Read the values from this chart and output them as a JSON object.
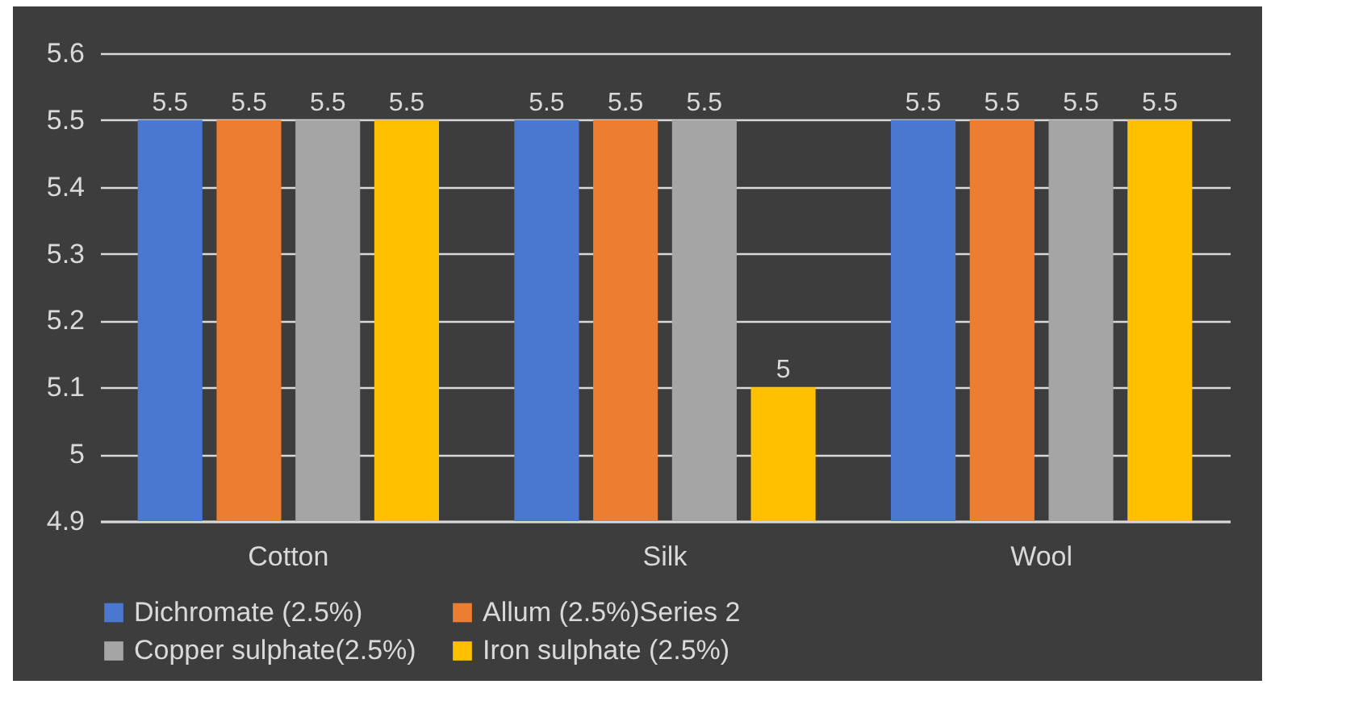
{
  "chart_data": {
    "type": "bar",
    "categories": [
      "Cotton",
      "Silk",
      "Wool"
    ],
    "series": [
      {
        "name": "Dichromate (2.5%)",
        "color": "#4a78d0",
        "values": [
          5.5,
          5.5,
          5.5
        ],
        "value_labels": [
          "5.5",
          "5.5",
          "5.5"
        ]
      },
      {
        "name": "Allum (2.5%)Series 2",
        "color": "#ed7d31",
        "values": [
          5.5,
          5.5,
          5.5
        ],
        "value_labels": [
          "5.5",
          "5.5",
          "5.5"
        ]
      },
      {
        "name": "Copper sulphate(2.5%)",
        "color": "#a5a5a5",
        "values": [
          5.5,
          5.5,
          5.5
        ],
        "value_labels": [
          "5.5",
          "5.5",
          "5.5"
        ]
      },
      {
        "name": "Iron sulphate (2.5%)",
        "color": "#ffc000",
        "values": [
          5.5,
          5.1,
          5.5
        ],
        "value_labels": [
          "5.5",
          "5",
          "5.5"
        ]
      }
    ],
    "ylim": [
      4.9,
      5.6
    ],
    "yticks": [
      4.9,
      5,
      5.1,
      5.2,
      5.3,
      5.4,
      5.5,
      5.6
    ],
    "grid": "y",
    "legend": "bottom"
  }
}
